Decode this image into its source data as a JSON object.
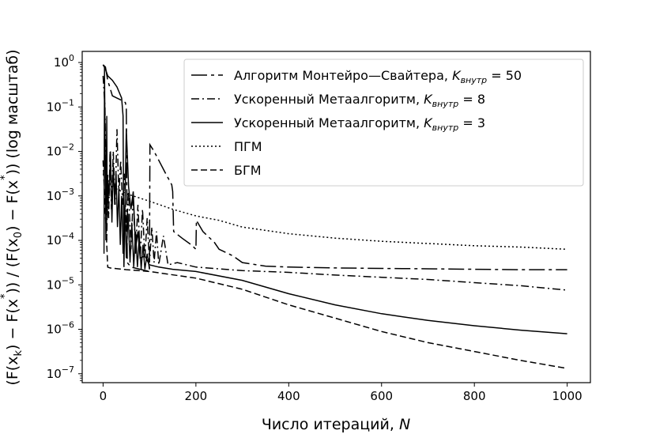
{
  "chart_data": {
    "type": "line",
    "xlabel": "Число итераций, N",
    "ylabel": "(F(x_k) − F(x*)) / (F(x_0) − F(x*)) (log масштаб)",
    "ylabel_parts": [
      "(F(x",
      "k",
      ") − F(x",
      "*",
      ")) / (F(x",
      "0",
      ") − F(x",
      "*",
      ")) (log масштаб)"
    ],
    "xlabel_parts": [
      "Число итераций, ",
      "N"
    ],
    "xlim": [
      -45,
      1050
    ],
    "ylim_log10": [
      -7.2,
      0.25
    ],
    "yscale": "log",
    "grid": false,
    "legend_position": "top-right",
    "x_ticks": [
      0,
      200,
      400,
      600,
      800,
      1000
    ],
    "y_ticks": [
      {
        "exp": 0,
        "base": "10",
        "sup": "0"
      },
      {
        "exp": -1,
        "base": "10",
        "sup": "−1"
      },
      {
        "exp": -2,
        "base": "10",
        "sup": "−2"
      },
      {
        "exp": -3,
        "base": "10",
        "sup": "−3"
      },
      {
        "exp": -4,
        "base": "10",
        "sup": "−4"
      },
      {
        "exp": -5,
        "base": "10",
        "sup": "−5"
      },
      {
        "exp": -6,
        "base": "10",
        "sup": "−6"
      },
      {
        "exp": -7,
        "base": "10",
        "sup": "−7"
      }
    ],
    "series": [
      {
        "name_parts": [
          "Алгоритм Монтейро—Свайтера, ",
          "K",
          "внутр",
          " = 50"
        ],
        "dash": "20,5,4,5",
        "points": [
          [
            0,
            -0.05
          ],
          [
            5,
            -0.1
          ],
          [
            10,
            -0.4
          ],
          [
            20,
            -0.75
          ],
          [
            30,
            -0.8
          ],
          [
            40,
            -0.85
          ],
          [
            48,
            -0.9
          ],
          [
            50,
            -1.0
          ],
          [
            52,
            -4.5
          ],
          [
            60,
            -4.6
          ],
          [
            80,
            -4.65
          ],
          [
            100,
            -4.7
          ],
          [
            101,
            -1.85
          ],
          [
            110,
            -2.0
          ],
          [
            120,
            -2.2
          ],
          [
            135,
            -2.5
          ],
          [
            148,
            -2.75
          ],
          [
            150,
            -2.9
          ],
          [
            152,
            -3.8
          ],
          [
            170,
            -3.95
          ],
          [
            190,
            -4.1
          ],
          [
            200,
            -4.2
          ],
          [
            201,
            -3.55
          ],
          [
            215,
            -3.8
          ],
          [
            240,
            -4.05
          ],
          [
            250,
            -4.2
          ],
          [
            260,
            -4.25
          ],
          [
            280,
            -4.35
          ],
          [
            300,
            -4.5
          ],
          [
            350,
            -4.58
          ],
          [
            400,
            -4.6
          ],
          [
            500,
            -4.62
          ],
          [
            600,
            -4.63
          ],
          [
            700,
            -4.64
          ],
          [
            800,
            -4.65
          ],
          [
            900,
            -4.66
          ],
          [
            1000,
            -4.66
          ]
        ]
      },
      {
        "name_parts": [
          "Ускоренный Метаалгоритм, ",
          "K",
          "внутр",
          " = 8"
        ],
        "dash": "10,4,2,4",
        "points": [
          [
            0,
            -0.3
          ],
          [
            4,
            -1.0
          ],
          [
            8,
            -4.0
          ],
          [
            10,
            -2.5
          ],
          [
            12,
            -3.5
          ],
          [
            15,
            -2.0
          ],
          [
            18,
            -3.3
          ],
          [
            22,
            -2.0
          ],
          [
            26,
            -3.2
          ],
          [
            30,
            -1.5
          ],
          [
            34,
            -3.0
          ],
          [
            38,
            -2.2
          ],
          [
            42,
            -3.2
          ],
          [
            46,
            -2.5
          ],
          [
            50,
            -3.8
          ],
          [
            55,
            -2.9
          ],
          [
            60,
            -4.2
          ],
          [
            65,
            -3.0
          ],
          [
            70,
            -4.3
          ],
          [
            75,
            -3.2
          ],
          [
            80,
            -4.4
          ],
          [
            85,
            -3.3
          ],
          [
            90,
            -4.4
          ],
          [
            95,
            -3.5
          ],
          [
            100,
            -4.5
          ],
          [
            105,
            -3.7
          ],
          [
            110,
            -4.5
          ],
          [
            115,
            -3.8
          ],
          [
            120,
            -4.55
          ],
          [
            130,
            -3.9
          ],
          [
            140,
            -4.55
          ],
          [
            160,
            -4.5
          ],
          [
            200,
            -4.6
          ],
          [
            300,
            -4.68
          ],
          [
            400,
            -4.72
          ],
          [
            500,
            -4.78
          ],
          [
            600,
            -4.83
          ],
          [
            700,
            -4.88
          ],
          [
            800,
            -4.95
          ],
          [
            900,
            -5.02
          ],
          [
            1000,
            -5.12
          ]
        ]
      },
      {
        "name_parts": [
          "Ускоренный Метаалгоритм, ",
          "K",
          "внутр",
          " = 3"
        ],
        "dash": "",
        "points": [
          [
            0,
            -0.05
          ],
          [
            5,
            -0.15
          ],
          [
            10,
            -0.3
          ],
          [
            20,
            -0.4
          ],
          [
            30,
            -0.55
          ],
          [
            40,
            -0.8
          ],
          [
            43,
            -1.2
          ],
          [
            45,
            -4.6
          ],
          [
            50,
            -1.5
          ],
          [
            55,
            -2.8
          ],
          [
            60,
            -3.3
          ],
          [
            65,
            -2.9
          ],
          [
            70,
            -4.2
          ],
          [
            75,
            -3.8
          ],
          [
            80,
            -4.4
          ],
          [
            90,
            -4.35
          ],
          [
            100,
            -4.55
          ],
          [
            120,
            -4.6
          ],
          [
            150,
            -4.65
          ],
          [
            200,
            -4.7
          ],
          [
            300,
            -4.9
          ],
          [
            400,
            -5.2
          ],
          [
            500,
            -5.45
          ],
          [
            600,
            -5.65
          ],
          [
            700,
            -5.8
          ],
          [
            800,
            -5.92
          ],
          [
            900,
            -6.02
          ],
          [
            1000,
            -6.1
          ]
        ]
      },
      {
        "name_parts": [
          "ПГМ"
        ],
        "dash": "2,3",
        "points": [
          [
            0,
            -2.5
          ],
          [
            10,
            -2.65
          ],
          [
            20,
            -2.75
          ],
          [
            30,
            -2.85
          ],
          [
            50,
            -2.95
          ],
          [
            100,
            -3.12
          ],
          [
            150,
            -3.3
          ],
          [
            200,
            -3.45
          ],
          [
            250,
            -3.55
          ],
          [
            300,
            -3.7
          ],
          [
            400,
            -3.85
          ],
          [
            500,
            -3.95
          ],
          [
            600,
            -4.02
          ],
          [
            700,
            -4.07
          ],
          [
            800,
            -4.12
          ],
          [
            900,
            -4.15
          ],
          [
            1000,
            -4.2
          ]
        ]
      },
      {
        "name_parts": [
          "БГМ"
        ],
        "dash": "8,4",
        "points": [
          [
            0,
            -2.2
          ],
          [
            10,
            -4.6
          ],
          [
            15,
            -4.62
          ],
          [
            50,
            -4.66
          ],
          [
            100,
            -4.7
          ],
          [
            200,
            -4.85
          ],
          [
            300,
            -5.1
          ],
          [
            400,
            -5.45
          ],
          [
            500,
            -5.75
          ],
          [
            600,
            -6.05
          ],
          [
            700,
            -6.3
          ],
          [
            800,
            -6.5
          ],
          [
            900,
            -6.7
          ],
          [
            1000,
            -6.88
          ]
        ]
      }
    ],
    "spikes": {
      "note_free": true,
      "points": [
        [
          2,
          -4.3
        ],
        [
          3,
          -0.1
        ],
        [
          5,
          -2.5
        ],
        [
          6,
          -4.0
        ],
        [
          8,
          -1.2
        ],
        [
          9,
          -3.5
        ],
        [
          11,
          -2.7
        ],
        [
          13,
          -3.0
        ],
        [
          16,
          -2.0
        ],
        [
          19,
          -3.6
        ],
        [
          22,
          -2.3
        ],
        [
          25,
          -3.2
        ],
        [
          28,
          -2.5
        ],
        [
          31,
          -3.7
        ],
        [
          34,
          -2.8
        ],
        [
          37,
          -4.1
        ],
        [
          40,
          -3.0
        ],
        [
          43,
          -4.3
        ],
        [
          47,
          -3.2
        ],
        [
          50,
          -4.4
        ],
        [
          54,
          -3.4
        ],
        [
          58,
          -4.5
        ],
        [
          62,
          -3.6
        ],
        [
          66,
          -4.6
        ],
        [
          70,
          -3.8
        ],
        [
          74,
          -4.6
        ],
        [
          78,
          -3.9
        ],
        [
          82,
          -4.65
        ],
        [
          86,
          -4.1
        ],
        [
          90,
          -4.65
        ],
        [
          95,
          -4.3
        ],
        [
          100,
          -4.65
        ]
      ]
    }
  }
}
